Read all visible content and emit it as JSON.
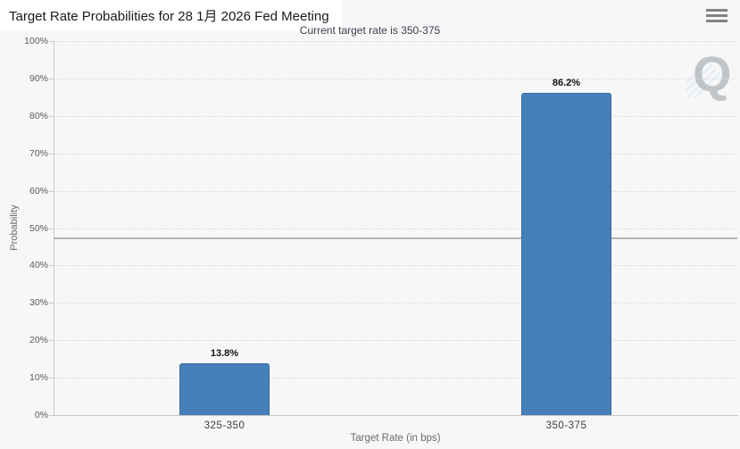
{
  "header": {
    "menu_icon": "hamburger-menu"
  },
  "chart_data": {
    "type": "bar",
    "title": "Target Rate Probabilities for 28 1月 2026 Fed Meeting",
    "subtitle": "Current target rate is 350-375",
    "categories": [
      "325-350",
      "350-375"
    ],
    "values": [
      13.8,
      86.2
    ],
    "value_labels": [
      "13.8%",
      "86.2%"
    ],
    "xlabel": "Target Rate (in bps)",
    "ylabel": "Probability",
    "ylim": [
      0,
      100
    ],
    "ytick_step": 10,
    "ytick_labels": [
      "0%",
      "10%",
      "20%",
      "30%",
      "40%",
      "50%",
      "60%",
      "70%",
      "80%",
      "90%",
      "100%"
    ],
    "grid": "horizontal-dotted",
    "legend": "none",
    "reference_line_value": 47.4,
    "bar_color": "#4680ba",
    "bar_border_color": "#3a6c9f"
  },
  "watermark": {
    "letter": "Q"
  },
  "colors": {
    "background": "#f7f7f7",
    "title_text": "#1a1a1a",
    "subtitle_text": "#39404d",
    "bar_fill": "#4680ba",
    "bar_border": "#3a6c9f",
    "gridline": "#d9d9d9",
    "axis_line": "#c9c9c9",
    "reference_line": "#b3b3b3",
    "tick_label": "#5a5a5a",
    "category_label": "#3c3c3c",
    "axis_title": "#6b6b6b",
    "data_label": "#111111",
    "menu_icon": "#828282",
    "watermark_blue": "#cfe0f0"
  }
}
